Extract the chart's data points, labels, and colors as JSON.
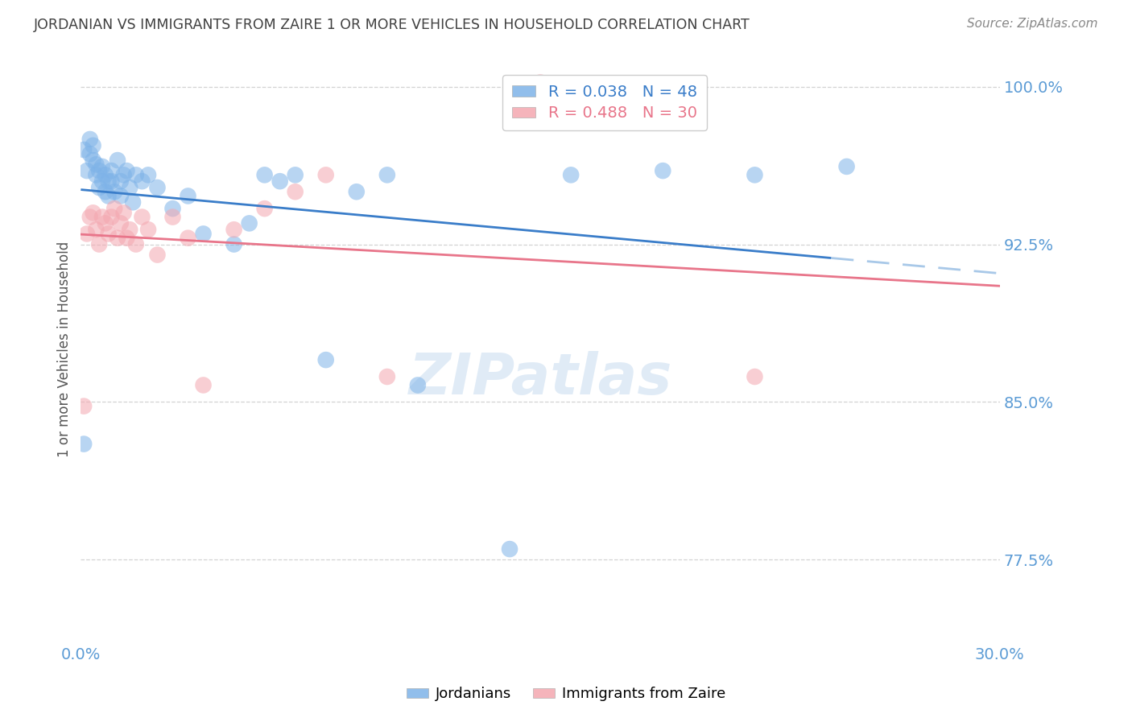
{
  "title": "JORDANIAN VS IMMIGRANTS FROM ZAIRE 1 OR MORE VEHICLES IN HOUSEHOLD CORRELATION CHART",
  "source": "Source: ZipAtlas.com",
  "ylabel": "1 or more Vehicles in Household",
  "xlabel_jordanians": "Jordanians",
  "xlabel_zaire": "Immigrants from Zaire",
  "xmin": 0.0,
  "xmax": 0.3,
  "ymin": 0.735,
  "ymax": 1.015,
  "yticks": [
    0.775,
    0.85,
    0.925,
    1.0
  ],
  "ytick_labels": [
    "77.5%",
    "85.0%",
    "92.5%",
    "100.0%"
  ],
  "xticks": [
    0.0,
    0.05,
    0.1,
    0.15,
    0.2,
    0.25,
    0.3
  ],
  "xtick_labels": [
    "0.0%",
    "",
    "",
    "",
    "",
    "",
    "30.0%"
  ],
  "R_jordanian": 0.038,
  "N_jordanian": 48,
  "R_zaire": 0.488,
  "N_zaire": 30,
  "blue_color": "#7EB3E8",
  "pink_color": "#F4A7B0",
  "blue_line_color": "#3A7DC9",
  "pink_line_color": "#E8758A",
  "axis_color": "#5B9BD5",
  "grid_color": "#C8C8C8",
  "title_color": "#404040",
  "jordanian_x": [
    0.001,
    0.002,
    0.003,
    0.003,
    0.004,
    0.004,
    0.005,
    0.005,
    0.006,
    0.006,
    0.007,
    0.007,
    0.008,
    0.008,
    0.009,
    0.009,
    0.01,
    0.01,
    0.011,
    0.012,
    0.013,
    0.013,
    0.014,
    0.015,
    0.016,
    0.017,
    0.018,
    0.02,
    0.022,
    0.025,
    0.03,
    0.035,
    0.04,
    0.05,
    0.055,
    0.06,
    0.065,
    0.07,
    0.08,
    0.09,
    0.1,
    0.11,
    0.14,
    0.16,
    0.19,
    0.22,
    0.25,
    0.001
  ],
  "jordanian_y": [
    0.97,
    0.96,
    0.968,
    0.975,
    0.965,
    0.972,
    0.958,
    0.963,
    0.952,
    0.96,
    0.955,
    0.962,
    0.95,
    0.958,
    0.955,
    0.948,
    0.96,
    0.955,
    0.95,
    0.965,
    0.955,
    0.948,
    0.958,
    0.96,
    0.952,
    0.945,
    0.958,
    0.955,
    0.958,
    0.952,
    0.942,
    0.948,
    0.93,
    0.925,
    0.935,
    0.958,
    0.955,
    0.958,
    0.87,
    0.95,
    0.958,
    0.858,
    0.78,
    0.958,
    0.96,
    0.958,
    0.962,
    0.83
  ],
  "zaire_x": [
    0.001,
    0.002,
    0.003,
    0.004,
    0.005,
    0.006,
    0.007,
    0.008,
    0.009,
    0.01,
    0.011,
    0.012,
    0.013,
    0.014,
    0.015,
    0.016,
    0.018,
    0.02,
    0.022,
    0.025,
    0.03,
    0.035,
    0.04,
    0.05,
    0.06,
    0.07,
    0.08,
    0.1,
    0.15,
    0.22
  ],
  "zaire_y": [
    0.848,
    0.93,
    0.938,
    0.94,
    0.932,
    0.925,
    0.938,
    0.935,
    0.93,
    0.938,
    0.942,
    0.928,
    0.935,
    0.94,
    0.928,
    0.932,
    0.925,
    0.938,
    0.932,
    0.92,
    0.938,
    0.928,
    0.858,
    0.932,
    0.942,
    0.95,
    0.958,
    0.862,
    1.002,
    0.862
  ]
}
